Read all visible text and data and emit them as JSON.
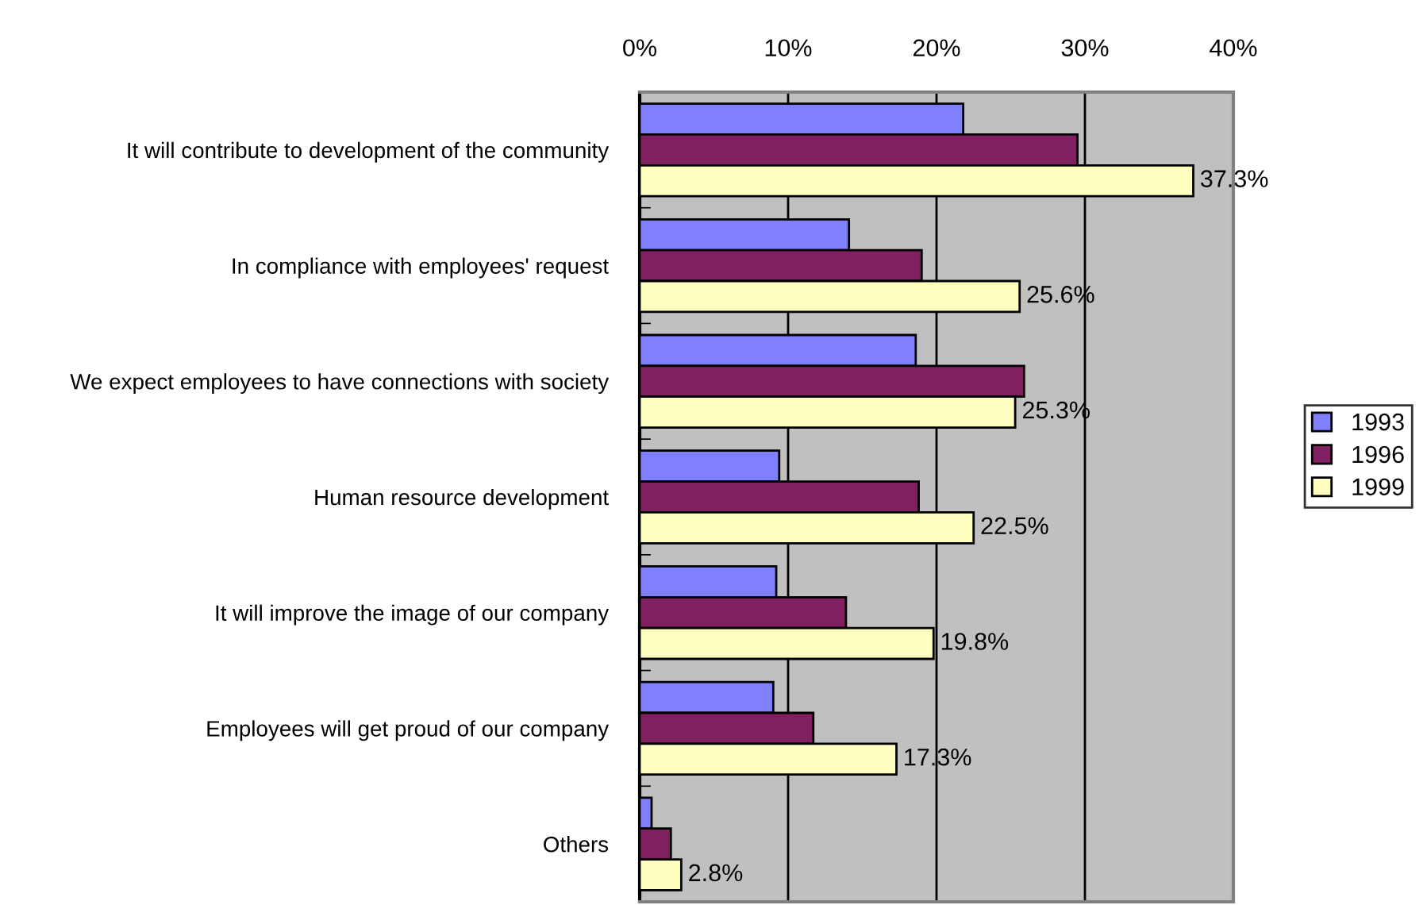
{
  "chart_data": {
    "type": "bar",
    "orientation": "horizontal",
    "categories": [
      "It will contribute to development of the community",
      "In compliance with employees' request",
      "We expect employees to have connections with society",
      "Human resource development",
      "It will improve the image of our company",
      "Employees will get proud of our company",
      "Others"
    ],
    "series": [
      {
        "name": "1993",
        "color": "#8080ff",
        "values": [
          21.8,
          14.1,
          18.6,
          9.4,
          9.2,
          9.0,
          0.8
        ]
      },
      {
        "name": "1996",
        "color": "#802060",
        "values": [
          29.5,
          19.0,
          25.9,
          18.8,
          13.9,
          11.7,
          2.1
        ]
      },
      {
        "name": "1999",
        "color": "#ffffc0",
        "values": [
          37.3,
          25.6,
          25.3,
          22.5,
          19.8,
          17.3,
          2.8
        ],
        "value_labels": [
          "37.3%",
          "25.6%",
          "25.3%",
          "22.5%",
          "19.8%",
          "17.3%",
          "2.8%"
        ]
      }
    ],
    "xlim": [
      0,
      40
    ],
    "xticks": [
      {
        "value": 0,
        "label": "0%"
      },
      {
        "value": 10,
        "label": "10%"
      },
      {
        "value": 20,
        "label": "20%"
      },
      {
        "value": 30,
        "label": "30%"
      },
      {
        "value": 40,
        "label": "40%"
      }
    ],
    "grid": "x",
    "legend": "right"
  }
}
